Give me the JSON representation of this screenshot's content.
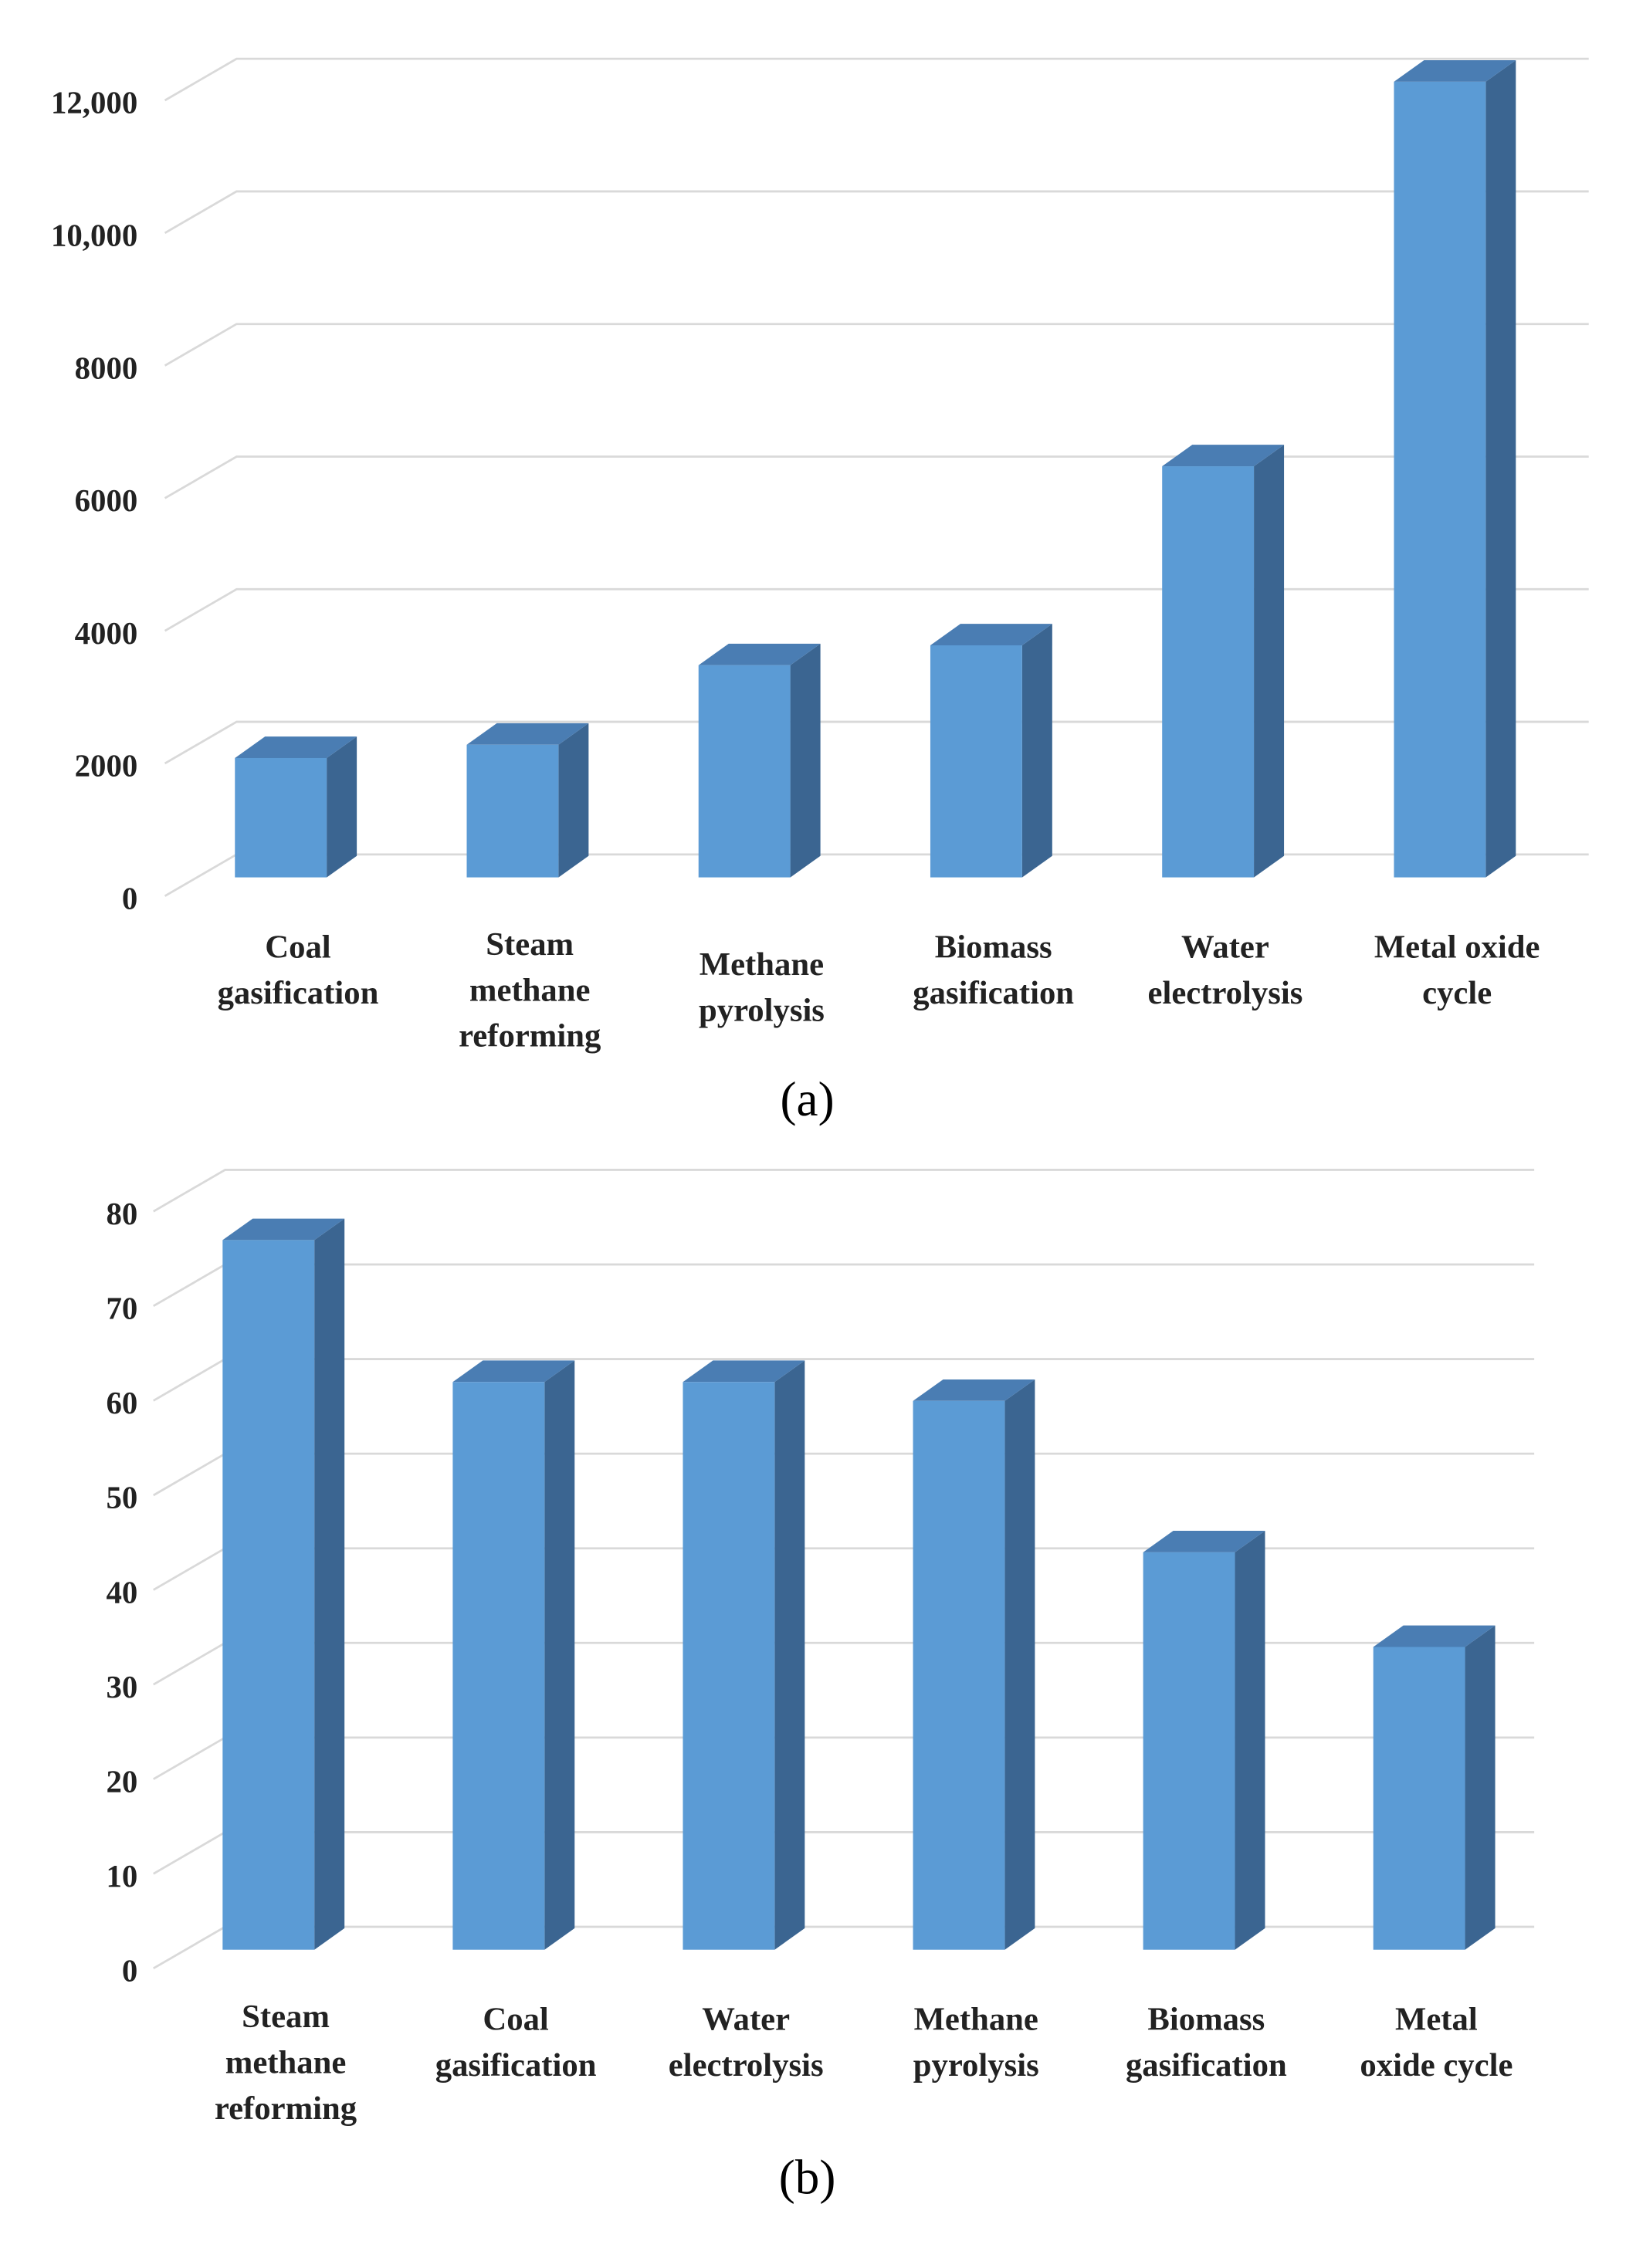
{
  "chart_data": [
    {
      "type": "bar3d",
      "caption": "(a)",
      "categories": [
        [
          "Coal",
          "gasification"
        ],
        [
          "Steam",
          "methane",
          "reforming"
        ],
        [
          "Methane",
          "pyrolysis"
        ],
        [
          "Biomass",
          "gasification"
        ],
        [
          "Water",
          "electrolysis"
        ],
        [
          "Metal oxide",
          "cycle"
        ]
      ],
      "values": [
        1800,
        2000,
        3200,
        3500,
        6200,
        12000
      ],
      "ylim": [
        0,
        12000
      ],
      "yticks": [
        0,
        2000,
        4000,
        6000,
        8000,
        {
          "value": 10000,
          "label": "10,000"
        },
        {
          "value": 12000,
          "label": "12,000"
        }
      ],
      "grid": true,
      "color": "#5b9bd5",
      "side_color": "#3b6591",
      "top_color": "#4a7db3"
    },
    {
      "type": "bar3d",
      "caption": "(b)",
      "categories": [
        [
          "Steam",
          "methane",
          "reforming"
        ],
        [
          "Coal",
          "gasification"
        ],
        [
          "Water",
          "electrolysis"
        ],
        [
          "Methane",
          "pyrolysis"
        ],
        [
          "Biomass",
          "gasification"
        ],
        [
          "Metal",
          "oxide cycle"
        ]
      ],
      "values": [
        75,
        60,
        60,
        58,
        42,
        32
      ],
      "ylim": [
        0,
        80
      ],
      "yticks": [
        0,
        10,
        20,
        30,
        40,
        50,
        60,
        70,
        80
      ],
      "grid": true,
      "color": "#5b9bd5",
      "side_color": "#3b6591",
      "top_color": "#4a7db3"
    }
  ]
}
